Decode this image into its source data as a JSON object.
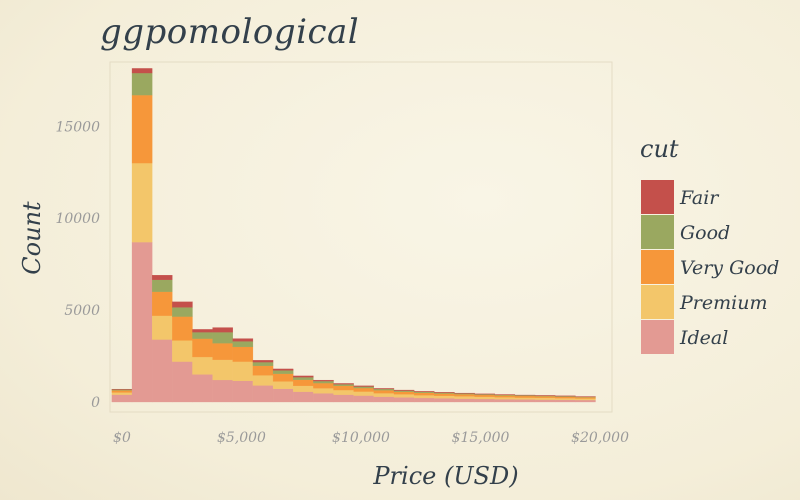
{
  "chart_data": {
    "type": "bar",
    "subtype": "stacked-histogram",
    "title": "ggpomological",
    "xlabel": "Price (USD)",
    "ylabel": "Count",
    "xlim": [
      -500,
      20500
    ],
    "ylim": [
      0,
      18500
    ],
    "x_ticks": [
      0,
      5000,
      10000,
      15000,
      20000
    ],
    "x_tick_labels": [
      "$0",
      "$5,000",
      "$10,000",
      "$15,000",
      "$20,000"
    ],
    "y_ticks": [
      0,
      5000,
      10000,
      15000
    ],
    "y_tick_labels": [
      "0",
      "5000",
      "10000",
      "15000"
    ],
    "bin_width": 843,
    "bin_starts": [
      -422,
      421,
      1264,
      2107,
      2950,
      3793,
      4636,
      5479,
      6322,
      7165,
      8008,
      8851,
      9694,
      10537,
      11380,
      12223,
      13066,
      13909,
      14752,
      15595,
      16438,
      17281,
      18124,
      18967
    ],
    "legend": {
      "title": "cut",
      "position": "right"
    },
    "series": [
      {
        "name": "Ideal",
        "color": "#e39a93",
        "values": [
          400,
          8700,
          3400,
          2200,
          1500,
          1200,
          1150,
          900,
          720,
          560,
          470,
          400,
          350,
          290,
          250,
          220,
          200,
          180,
          165,
          150,
          140,
          130,
          120,
          110
        ]
      },
      {
        "name": "Premium",
        "color": "#f3c66a",
        "values": [
          120,
          4300,
          1300,
          1150,
          950,
          1100,
          1050,
          550,
          400,
          320,
          280,
          250,
          220,
          190,
          170,
          150,
          140,
          130,
          120,
          110,
          100,
          100,
          90,
          80
        ]
      },
      {
        "name": "Very Good",
        "color": "#f6973a",
        "values": [
          110,
          3700,
          1300,
          1300,
          1000,
          900,
          800,
          520,
          420,
          330,
          280,
          230,
          190,
          160,
          140,
          130,
          120,
          110,
          100,
          95,
          90,
          85,
          80,
          70
        ]
      },
      {
        "name": "Good",
        "color": "#9aa860",
        "values": [
          50,
          1200,
          650,
          500,
          350,
          600,
          300,
          200,
          180,
          140,
          110,
          90,
          80,
          70,
          60,
          55,
          50,
          45,
          40,
          35,
          35,
          30,
          30,
          25
        ]
      },
      {
        "name": "Fair",
        "color": "#c4504b",
        "values": [
          20,
          250,
          250,
          300,
          150,
          250,
          150,
          100,
          80,
          70,
          50,
          40,
          40,
          30,
          30,
          25,
          25,
          20,
          20,
          20,
          15,
          15,
          15,
          15
        ]
      }
    ]
  }
}
